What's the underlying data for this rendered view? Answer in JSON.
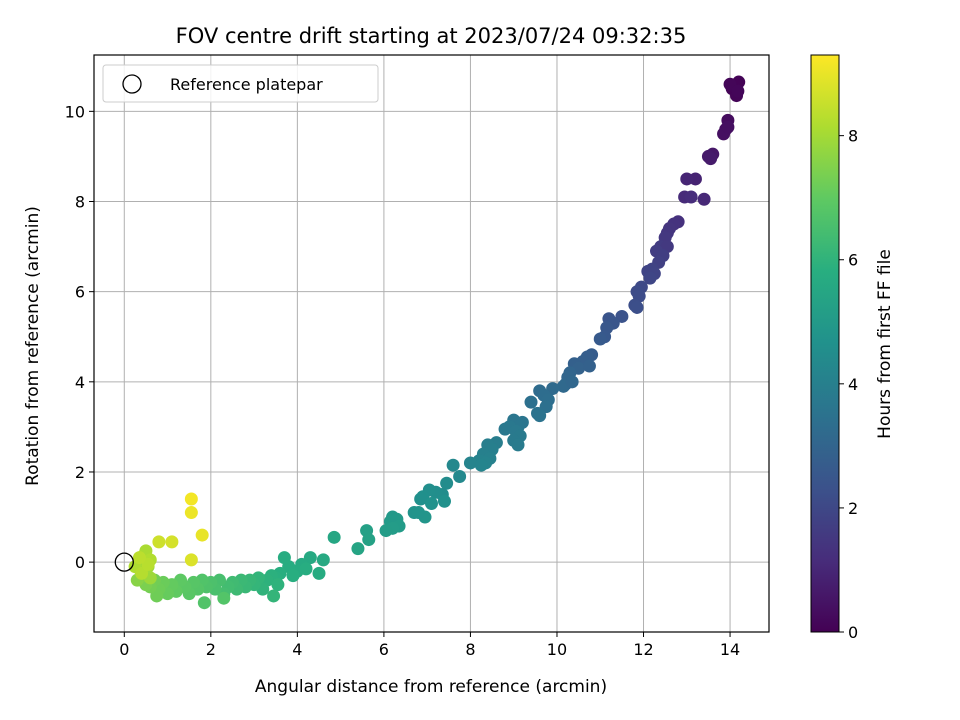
{
  "chart_data": {
    "type": "scatter",
    "title": "FOV centre drift starting at 2023/07/24 09:32:35",
    "xlabel": "Angular distance from reference (arcmin)",
    "ylabel": "Rotation from reference (arcmin)",
    "xlim": [
      -0.7,
      14.9
    ],
    "ylim": [
      -1.55,
      11.25
    ],
    "xticks": [
      "0",
      "2",
      "4",
      "6",
      "8",
      "10",
      "12",
      "14"
    ],
    "yticks": [
      "0",
      "2",
      "4",
      "6",
      "8",
      "10"
    ],
    "grid": true,
    "legend": {
      "placement": "top-left",
      "entries": [
        "Reference platepar"
      ]
    },
    "reference_point": {
      "x": 0,
      "y": 0
    },
    "colorbar": {
      "label": "Hours from first FF file",
      "colormap": "viridis",
      "range": [
        0,
        9.3
      ],
      "ticks": [
        "0",
        "2",
        "4",
        "6",
        "8"
      ]
    },
    "series": [
      {
        "points": [
          [
            14.1,
            10.55,
            0.02
          ],
          [
            14.2,
            10.65,
            0.05
          ],
          [
            14.05,
            10.5,
            0.07
          ],
          [
            14.15,
            10.35,
            0.1
          ],
          [
            14.0,
            10.6,
            0.12
          ],
          [
            14.18,
            10.45,
            0.14
          ],
          [
            13.95,
            9.8,
            0.3
          ],
          [
            13.9,
            9.6,
            0.35
          ],
          [
            13.85,
            9.5,
            0.4
          ],
          [
            13.95,
            9.65,
            0.38
          ],
          [
            13.6,
            9.05,
            0.6
          ],
          [
            13.5,
            9.0,
            0.65
          ],
          [
            13.55,
            8.95,
            0.7
          ],
          [
            13.2,
            8.5,
            0.9
          ],
          [
            13.0,
            8.5,
            0.95
          ],
          [
            12.95,
            8.1,
            1.1
          ],
          [
            13.4,
            8.05,
            1.05
          ],
          [
            13.1,
            8.1,
            1.15
          ],
          [
            12.8,
            7.55,
            1.3
          ],
          [
            12.7,
            7.5,
            1.35
          ],
          [
            12.6,
            7.4,
            1.4
          ],
          [
            12.55,
            7.3,
            1.45
          ],
          [
            12.5,
            7.2,
            1.5
          ],
          [
            12.4,
            7.0,
            1.6
          ],
          [
            12.55,
            7.0,
            1.55
          ],
          [
            12.3,
            6.9,
            1.65
          ],
          [
            12.45,
            6.8,
            1.7
          ],
          [
            12.35,
            6.65,
            1.75
          ],
          [
            12.2,
            6.5,
            1.85
          ],
          [
            12.1,
            6.45,
            1.9
          ],
          [
            12.25,
            6.4,
            1.88
          ],
          [
            12.15,
            6.3,
            1.95
          ],
          [
            11.95,
            6.1,
            2.05
          ],
          [
            11.85,
            6.0,
            2.1
          ],
          [
            11.9,
            5.9,
            2.15
          ],
          [
            11.8,
            5.7,
            2.2
          ],
          [
            11.85,
            5.65,
            2.22
          ],
          [
            11.5,
            5.45,
            2.35
          ],
          [
            11.2,
            5.4,
            2.4
          ],
          [
            11.3,
            5.3,
            2.45
          ],
          [
            11.15,
            5.2,
            2.5
          ],
          [
            11.1,
            5.0,
            2.55
          ],
          [
            11.0,
            4.95,
            2.6
          ],
          [
            10.8,
            4.6,
            2.7
          ],
          [
            10.7,
            4.55,
            2.75
          ],
          [
            10.6,
            4.45,
            2.8
          ],
          [
            10.4,
            4.4,
            2.85
          ],
          [
            10.5,
            4.3,
            2.9
          ],
          [
            10.75,
            4.35,
            2.88
          ],
          [
            10.3,
            4.2,
            3.0
          ],
          [
            10.25,
            4.1,
            3.05
          ],
          [
            10.2,
            3.95,
            3.1
          ],
          [
            10.15,
            3.9,
            3.15
          ],
          [
            10.35,
            4.0,
            3.08
          ],
          [
            9.9,
            3.85,
            3.2
          ],
          [
            9.6,
            3.8,
            3.25
          ],
          [
            9.7,
            3.7,
            3.3
          ],
          [
            9.8,
            3.6,
            3.35
          ],
          [
            9.4,
            3.55,
            3.4
          ],
          [
            9.75,
            3.45,
            3.42
          ],
          [
            9.55,
            3.3,
            3.5
          ],
          [
            9.6,
            3.25,
            3.52
          ],
          [
            9.2,
            3.1,
            3.6
          ],
          [
            9.0,
            3.15,
            3.62
          ],
          [
            9.1,
            3.0,
            3.65
          ],
          [
            8.9,
            3.0,
            3.7
          ],
          [
            8.8,
            2.95,
            3.72
          ],
          [
            9.05,
            2.9,
            3.75
          ],
          [
            9.15,
            2.8,
            3.78
          ],
          [
            9.0,
            2.7,
            3.8
          ],
          [
            9.1,
            2.6,
            3.82
          ],
          [
            8.6,
            2.65,
            3.9
          ],
          [
            8.4,
            2.6,
            3.95
          ],
          [
            8.5,
            2.5,
            3.98
          ],
          [
            8.3,
            2.4,
            4.0
          ],
          [
            8.45,
            2.3,
            4.05
          ],
          [
            8.2,
            2.25,
            4.1
          ],
          [
            8.35,
            2.2,
            4.12
          ],
          [
            8.0,
            2.2,
            4.15
          ],
          [
            8.25,
            2.15,
            4.18
          ],
          [
            7.6,
            2.15,
            4.3
          ],
          [
            7.75,
            1.9,
            4.35
          ],
          [
            7.45,
            1.75,
            4.45
          ],
          [
            7.35,
            1.5,
            4.5
          ],
          [
            7.2,
            1.55,
            4.55
          ],
          [
            7.05,
            1.6,
            4.58
          ],
          [
            6.9,
            1.45,
            4.6
          ],
          [
            6.85,
            1.4,
            4.62
          ],
          [
            7.4,
            1.35,
            4.65
          ],
          [
            7.1,
            1.3,
            4.68
          ],
          [
            6.7,
            1.1,
            4.75
          ],
          [
            6.95,
            1.0,
            4.8
          ],
          [
            6.8,
            1.1,
            4.78
          ],
          [
            6.2,
            1.0,
            4.95
          ],
          [
            6.15,
            0.9,
            5.0
          ],
          [
            6.3,
            0.95,
            4.98
          ],
          [
            6.35,
            0.8,
            5.05
          ],
          [
            6.2,
            0.75,
            5.08
          ],
          [
            6.05,
            0.7,
            5.1
          ],
          [
            5.6,
            0.7,
            5.25
          ],
          [
            5.65,
            0.5,
            5.3
          ],
          [
            5.4,
            0.3,
            5.4
          ],
          [
            4.85,
            0.55,
            5.5
          ],
          [
            4.3,
            0.1,
            5.6
          ],
          [
            4.6,
            0.05,
            5.62
          ],
          [
            4.1,
            -0.05,
            5.65
          ],
          [
            4.5,
            -0.25,
            5.68
          ],
          [
            4.0,
            -0.2,
            5.7
          ],
          [
            3.8,
            -0.1,
            5.72
          ],
          [
            3.7,
            0.1,
            5.74
          ],
          [
            4.2,
            -0.15,
            5.76
          ],
          [
            3.9,
            -0.3,
            5.8
          ],
          [
            3.6,
            -0.25,
            5.82
          ],
          [
            3.5,
            -0.35,
            5.85
          ],
          [
            3.4,
            -0.3,
            5.9
          ],
          [
            3.3,
            -0.4,
            5.95
          ],
          [
            3.55,
            -0.5,
            5.97
          ],
          [
            3.2,
            -0.6,
            6.0
          ],
          [
            3.1,
            -0.35,
            6.05
          ],
          [
            3.45,
            -0.75,
            6.08
          ],
          [
            3.0,
            -0.5,
            6.1
          ],
          [
            2.9,
            -0.4,
            6.15
          ],
          [
            2.8,
            -0.55,
            6.2
          ],
          [
            2.7,
            -0.4,
            6.25
          ],
          [
            2.6,
            -0.6,
            6.3
          ],
          [
            2.5,
            -0.45,
            6.35
          ],
          [
            2.4,
            -0.55,
            6.4
          ],
          [
            2.3,
            -0.7,
            6.45
          ],
          [
            2.2,
            -0.4,
            6.5
          ],
          [
            2.1,
            -0.6,
            6.55
          ],
          [
            2.0,
            -0.45,
            6.6
          ],
          [
            1.9,
            -0.55,
            6.65
          ],
          [
            1.8,
            -0.4,
            6.7
          ],
          [
            1.85,
            -0.9,
            6.72
          ],
          [
            2.3,
            -0.8,
            6.74
          ],
          [
            1.7,
            -0.6,
            6.78
          ],
          [
            1.6,
            -0.45,
            6.82
          ],
          [
            1.5,
            -0.7,
            6.86
          ],
          [
            1.4,
            -0.55,
            6.9
          ],
          [
            1.3,
            -0.4,
            6.95
          ],
          [
            1.2,
            -0.65,
            7.0
          ],
          [
            1.1,
            -0.5,
            7.05
          ],
          [
            1.0,
            -0.7,
            7.1
          ],
          [
            0.9,
            -0.45,
            7.15
          ],
          [
            0.8,
            -0.6,
            7.2
          ],
          [
            0.75,
            -0.75,
            7.22
          ],
          [
            0.7,
            -0.4,
            7.25
          ],
          [
            0.6,
            -0.55,
            7.3
          ],
          [
            0.5,
            -0.5,
            7.4
          ],
          [
            0.45,
            -0.3,
            7.5
          ],
          [
            0.3,
            -0.4,
            7.6
          ],
          [
            0.35,
            -0.15,
            7.7
          ],
          [
            0.4,
            0.0,
            7.8
          ],
          [
            0.5,
            -0.2,
            7.85
          ],
          [
            0.6,
            -0.35,
            7.9
          ],
          [
            0.55,
            -0.1,
            7.95
          ],
          [
            0.45,
            0.15,
            8.05
          ],
          [
            0.5,
            0.25,
            8.1
          ],
          [
            0.25,
            -0.1,
            8.15
          ],
          [
            0.6,
            0.05,
            8.2
          ],
          [
            0.4,
            -0.25,
            8.25
          ],
          [
            0.55,
            -0.05,
            8.3
          ],
          [
            0.35,
            0.1,
            8.35
          ],
          [
            0.8,
            0.45,
            8.6
          ],
          [
            1.1,
            0.45,
            8.7
          ],
          [
            1.55,
            0.05,
            8.8
          ],
          [
            1.8,
            0.6,
            9.0
          ],
          [
            1.55,
            1.1,
            9.05
          ],
          [
            1.55,
            1.4,
            9.15
          ]
        ]
      }
    ]
  }
}
